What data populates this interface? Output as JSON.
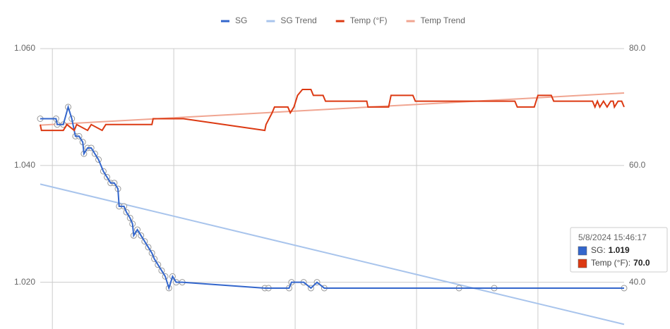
{
  "chart_data": {
    "type": "line",
    "xlim": [
      0.9,
      5.71
    ],
    "xticks": [
      1,
      2,
      3,
      4,
      5
    ],
    "ylim": [
      1.012,
      1.06
    ],
    "yticks": [
      {
        "value": 1.06,
        "label": "1.060"
      },
      {
        "value": 1.04,
        "label": "1.040"
      },
      {
        "value": 1.02,
        "label": "1.020"
      }
    ],
    "y2lim": [
      32,
      80
    ],
    "y2ticks": [
      {
        "value": 80,
        "label": "80.0"
      },
      {
        "value": 60,
        "label": "60.0"
      },
      {
        "value": 40,
        "label": "40.0"
      }
    ],
    "grid": true,
    "legend": "top",
    "series": [
      {
        "name": "SG",
        "color": "#3366cc",
        "markers": true,
        "x": [
          0.9,
          1.03,
          1.04,
          1.09,
          1.13,
          1.16,
          1.19,
          1.22,
          1.25,
          1.26,
          1.29,
          1.32,
          1.35,
          1.38,
          1.42,
          1.45,
          1.48,
          1.51,
          1.54,
          1.55,
          1.59,
          1.61,
          1.64,
          1.66,
          1.67,
          1.7,
          1.73,
          1.76,
          1.79,
          1.82,
          1.84,
          1.87,
          1.9,
          1.93,
          1.96,
          1.99,
          2.02,
          2.07,
          2.75,
          2.78,
          2.95,
          2.97,
          3.07,
          3.13,
          3.18,
          3.24,
          4.35,
          4.64,
          5.71
        ],
        "values": [
          1.048,
          1.048,
          1.047,
          1.047,
          1.05,
          1.048,
          1.045,
          1.045,
          1.044,
          1.042,
          1.043,
          1.043,
          1.042,
          1.041,
          1.039,
          1.038,
          1.037,
          1.037,
          1.036,
          1.033,
          1.033,
          1.032,
          1.031,
          1.03,
          1.028,
          1.029,
          1.028,
          1.027,
          1.026,
          1.025,
          1.024,
          1.023,
          1.022,
          1.021,
          1.019,
          1.021,
          1.02,
          1.02,
          1.019,
          1.019,
          1.019,
          1.02,
          1.02,
          1.019,
          1.02,
          1.019,
          1.019,
          1.019,
          1.019
        ]
      },
      {
        "name": "SG Trend",
        "color": "#a8c4ec",
        "x": [
          0.9,
          5.71
        ],
        "values": [
          1.0368,
          1.0128
        ]
      },
      {
        "name": "Temp (°F)",
        "color": "#dc3912",
        "axis": "y2",
        "x": [
          0.9,
          0.91,
          1.09,
          1.12,
          1.18,
          1.2,
          1.29,
          1.32,
          1.41,
          1.44,
          1.82,
          1.83,
          2.08,
          2.75,
          2.76,
          2.81,
          2.83,
          2.94,
          2.96,
          2.99,
          3.02,
          3.06,
          3.13,
          3.15,
          3.23,
          3.25,
          3.59,
          3.6,
          3.77,
          3.79,
          3.97,
          3.99,
          4.81,
          4.83,
          4.97,
          5.0,
          5.11,
          5.13,
          5.45,
          5.47,
          5.49,
          5.51,
          5.54,
          5.57,
          5.6,
          5.62,
          5.63,
          5.66,
          5.69,
          5.71
        ],
        "values": [
          67,
          66,
          66,
          67,
          66,
          67,
          66,
          67,
          66,
          67,
          67,
          68,
          68,
          66,
          67,
          69,
          70,
          70,
          69,
          70,
          72,
          73,
          73,
          72,
          72,
          71,
          71,
          70,
          70,
          72,
          72,
          71,
          71,
          70,
          70,
          72,
          72,
          71,
          71,
          70,
          71,
          70,
          71,
          70,
          71,
          71,
          70,
          71,
          71,
          70
        ]
      },
      {
        "name": "Temp Trend",
        "color": "#f0a591",
        "axis": "y2",
        "x": [
          0.9,
          5.71
        ],
        "values": [
          66.9,
          72.4
        ]
      }
    ],
    "tooltip": {
      "title": "5/8/2024 15:46:17",
      "items": [
        {
          "name": "SG:",
          "color": "#3366cc",
          "value": 1.019
        },
        {
          "name": "Temp (°F):",
          "color": "#dc3912",
          "value": {
            "value": 70,
            "label": "70.0"
          }
        }
      ]
    }
  }
}
